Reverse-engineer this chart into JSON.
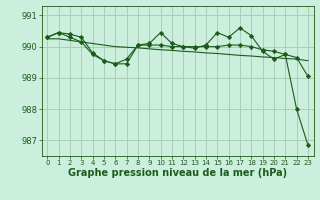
{
  "background_color": "#cceedd",
  "grid_color": "#aaccbb",
  "line_color": "#1a5c1a",
  "marker_color": "#1a5c1a",
  "xlabel": "Graphe pression niveau de la mer (hPa)",
  "xlim_min": -0.5,
  "xlim_max": 23.5,
  "ylim_min": 986.5,
  "ylim_max": 991.3,
  "yticks": [
    987,
    988,
    989,
    990,
    991
  ],
  "xticks": [
    0,
    1,
    2,
    3,
    4,
    5,
    6,
    7,
    8,
    9,
    10,
    11,
    12,
    13,
    14,
    15,
    16,
    17,
    18,
    19,
    20,
    21,
    22,
    23
  ],
  "series1_y": [
    990.3,
    990.45,
    990.4,
    990.3,
    989.8,
    989.55,
    989.45,
    989.6,
    990.05,
    990.1,
    990.45,
    990.1,
    990.0,
    989.95,
    990.05,
    990.45,
    990.3,
    990.6,
    990.35,
    989.85,
    989.6,
    989.75,
    988.0,
    986.85
  ],
  "series2_y": [
    990.3,
    990.45,
    990.3,
    990.15,
    989.75,
    989.55,
    989.45,
    989.45,
    990.05,
    990.05,
    990.05,
    990.0,
    990.0,
    990.0,
    990.0,
    990.0,
    990.05,
    990.05,
    990.0,
    989.9,
    989.85,
    989.75,
    989.65,
    989.05
  ],
  "trend_y": [
    990.25,
    990.25,
    990.2,
    990.15,
    990.1,
    990.05,
    990.0,
    989.98,
    989.96,
    989.93,
    989.9,
    989.88,
    989.85,
    989.83,
    989.8,
    989.78,
    989.75,
    989.72,
    989.7,
    989.67,
    989.65,
    989.62,
    989.6,
    989.55
  ]
}
